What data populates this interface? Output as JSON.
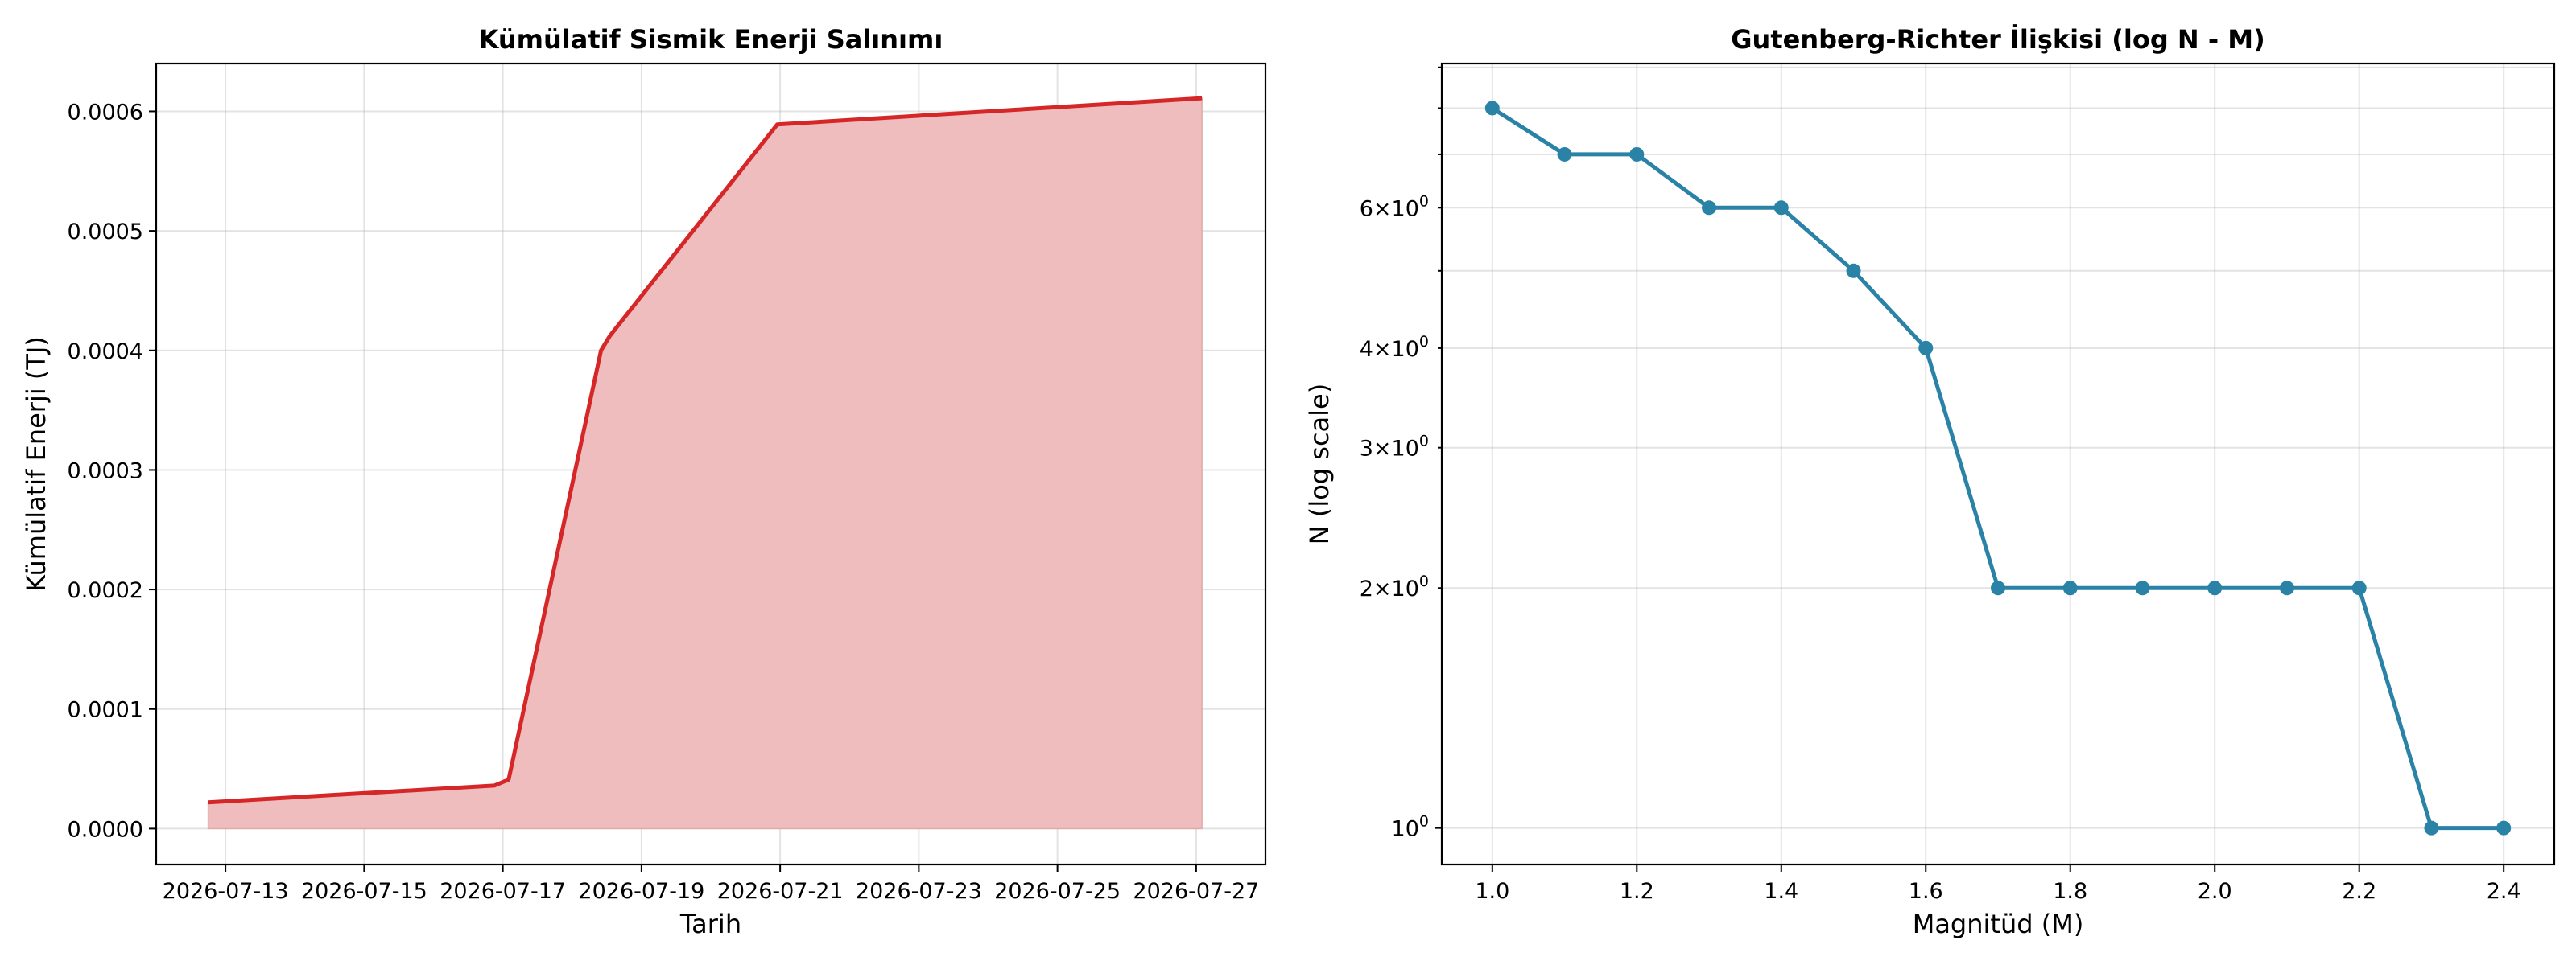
{
  "chart_data": [
    {
      "type": "area",
      "title": "Kümülatif Sismik Enerji Salınımı",
      "xlabel": "Tarih",
      "ylabel": "Kümülatif Enerji (TJ)",
      "x_range": [
        "2026-07-12",
        "2026-07-28"
      ],
      "ylim": [
        -3e-05,
        0.00064
      ],
      "x_ticks": [
        "2026-07-13",
        "2026-07-15",
        "2026-07-17",
        "2026-07-19",
        "2026-07-21",
        "2026-07-23",
        "2026-07-25",
        "2026-07-27"
      ],
      "y_ticks": [
        {
          "value": 0,
          "label": "0.0000"
        },
        {
          "value": 0.0001,
          "label": "0.0001"
        },
        {
          "value": 0.0002,
          "label": "0.0002"
        },
        {
          "value": 0.0003,
          "label": "0.0003"
        },
        {
          "value": 0.0004,
          "label": "0.0004"
        },
        {
          "value": 0.0005,
          "label": "0.0005"
        },
        {
          "value": 0.0006,
          "label": "0.0006"
        }
      ],
      "grid": true,
      "line_color": "#d62728",
      "fill_color": "#f0bdbe",
      "points": [
        {
          "x": "2026-07-12T18:00",
          "y": 2.2e-05
        },
        {
          "x": "2026-07-16T21:00",
          "y": 3.6e-05
        },
        {
          "x": "2026-07-17T02:00",
          "y": 4.1e-05
        },
        {
          "x": "2026-07-18T10:00",
          "y": 0.0004
        },
        {
          "x": "2026-07-18T13:00",
          "y": 0.000412
        },
        {
          "x": "2026-07-20T23:00",
          "y": 0.000589
        },
        {
          "x": "2026-07-27T02:00",
          "y": 0.000611
        }
      ]
    },
    {
      "type": "line",
      "title": "Gutenberg-Richter İlişkisi (log N - M)",
      "xlabel": "Magnitüd (M)",
      "ylabel": "N (log scale)",
      "y_scale": "log",
      "xlim": [
        0.93,
        2.47
      ],
      "ylim": [
        0.9,
        9.1
      ],
      "x_ticks": [
        {
          "value": 1.0,
          "label": "1.0"
        },
        {
          "value": 1.2,
          "label": "1.2"
        },
        {
          "value": 1.4,
          "label": "1.4"
        },
        {
          "value": 1.6,
          "label": "1.6"
        },
        {
          "value": 1.8,
          "label": "1.8"
        },
        {
          "value": 2.0,
          "label": "2.0"
        },
        {
          "value": 2.2,
          "label": "2.2"
        },
        {
          "value": 2.4,
          "label": "2.4"
        }
      ],
      "y_ticks": [
        {
          "value": 1,
          "mant": "",
          "label": "10",
          "exp": "0"
        },
        {
          "value": 2,
          "mant": "2",
          "label": "×10",
          "exp": "0"
        },
        {
          "value": 3,
          "mant": "3",
          "label": "×10",
          "exp": "0"
        },
        {
          "value": 4,
          "mant": "4",
          "label": "×10",
          "exp": "0"
        },
        {
          "value": 6,
          "mant": "6",
          "label": "×10",
          "exp": "0"
        }
      ],
      "y_minor_ticks": [
        5,
        7,
        8,
        9
      ],
      "grid": true,
      "line_color": "#2a83a6",
      "x": [
        1.0,
        1.1,
        1.2,
        1.3,
        1.4,
        1.5,
        1.6,
        1.7,
        1.8,
        1.9,
        2.0,
        2.1,
        2.2,
        2.3,
        2.4
      ],
      "y": [
        8,
        7,
        7,
        6,
        6,
        5,
        4,
        2,
        2,
        2,
        2,
        2,
        2,
        1,
        1
      ]
    }
  ]
}
